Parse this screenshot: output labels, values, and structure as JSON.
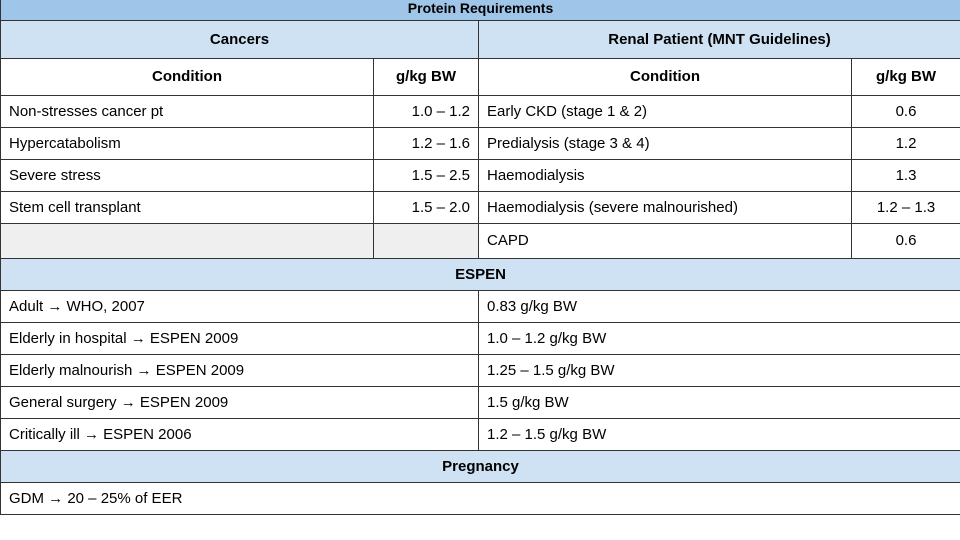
{
  "title": "Protein Requirements",
  "cancers": {
    "heading": "Cancers",
    "col_condition": "Condition",
    "col_value": "g/kg BW",
    "rows": [
      {
        "condition": "Non-stresses cancer pt",
        "value": "1.0 – 1.2"
      },
      {
        "condition": "Hypercatabolism",
        "value": "1.2 – 1.6"
      },
      {
        "condition": "Severe stress",
        "value": "1.5 – 2.5"
      },
      {
        "condition": "Stem cell transplant",
        "value": "1.5 – 2.0"
      }
    ]
  },
  "renal": {
    "heading": "Renal Patient (MNT Guidelines)",
    "col_condition": "Condition",
    "col_value": "g/kg BW",
    "rows": [
      {
        "condition": "Early CKD (stage 1 & 2)",
        "value": "0.6"
      },
      {
        "condition": "Predialysis (stage 3  & 4)",
        "value": "1.2"
      },
      {
        "condition": "Haemodialysis",
        "value": "1.3"
      },
      {
        "condition": "Haemodialysis (severe malnourished)",
        "value": "1.2 – 1.3"
      },
      {
        "condition": "CAPD",
        "value": "0.6"
      }
    ]
  },
  "espen": {
    "heading": "ESPEN",
    "rows": [
      {
        "population": "Adult → WHO, 2007",
        "value": "0.83 g/kg BW"
      },
      {
        "population": "Elderly in hospital → ESPEN 2009",
        "value": "1.0 – 1.2 g/kg BW"
      },
      {
        "population": "Elderly malnourish → ESPEN 2009",
        "value": "1.25 – 1.5 g/kg BW"
      },
      {
        "population": "General surgery → ESPEN 2009",
        "value": "1.5 g/kg BW"
      },
      {
        "population": "Critically ill → ESPEN 2006",
        "value": "1.2 – 1.5 g/kg BW"
      }
    ]
  },
  "pregnancy": {
    "heading": "Pregnancy",
    "text": "GDM → 20 – 25% of EER"
  }
}
